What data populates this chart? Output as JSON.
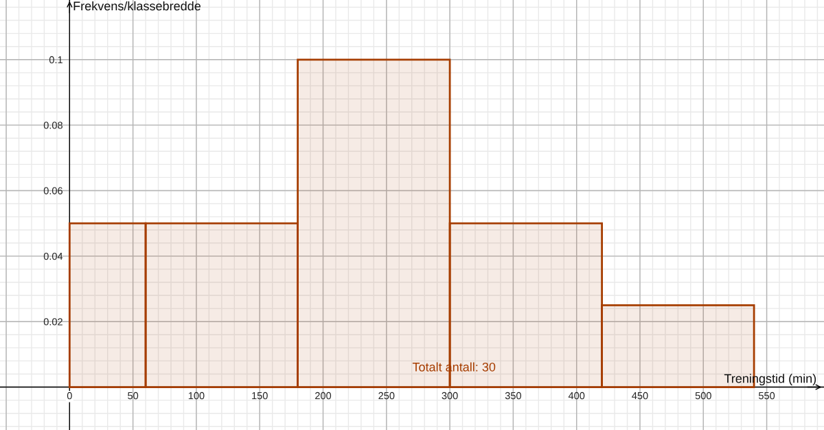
{
  "chart_data": {
    "type": "histogram",
    "xlabel": "Treningstid (min)",
    "ylabel": "Frekvens/klassebredde",
    "annotations": [
      "Totalt antall: 30"
    ],
    "bins": [
      0,
      60,
      180,
      300,
      420,
      540
    ],
    "values": [
      0.05,
      0.05,
      0.1,
      0.05,
      0.025
    ],
    "color": "#a63d00",
    "xlim": [
      -54.9,
      595.2
    ],
    "ylim": [
      -0.0131,
      0.1182
    ],
    "xticks": [
      0,
      50,
      100,
      150,
      200,
      250,
      300,
      350,
      400,
      450,
      500,
      550
    ],
    "yticks": [
      0.02,
      0.04,
      0.06,
      0.08,
      0.1
    ],
    "grid": true
  }
}
